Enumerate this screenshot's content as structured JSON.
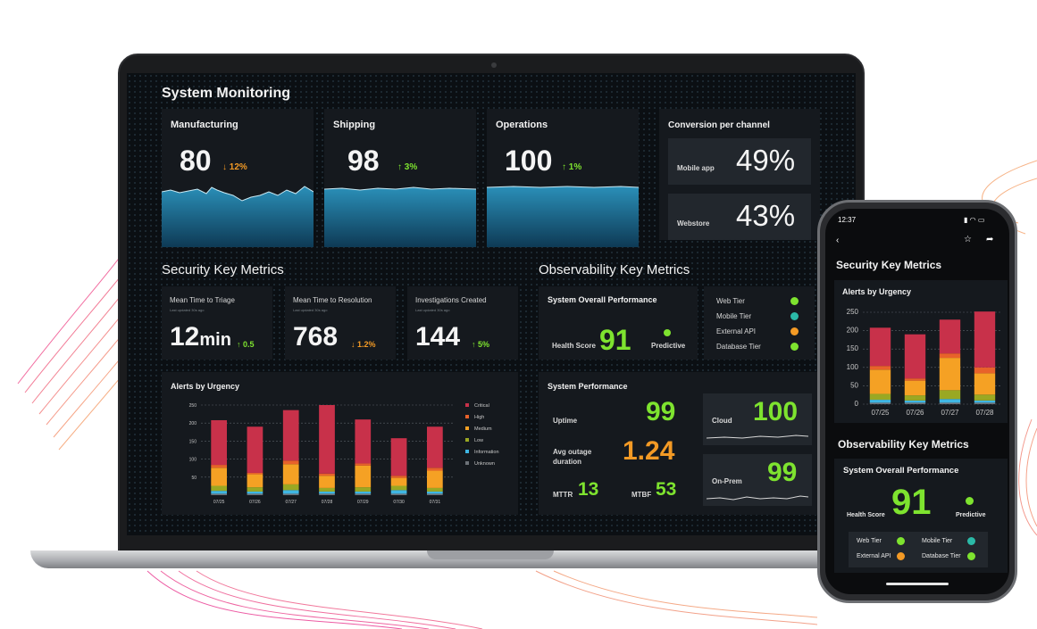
{
  "dashboard": {
    "title": "System Monitoring",
    "cards": [
      {
        "label": "Manufacturing",
        "value": "80",
        "delta": "↓ 12%",
        "trend": "down"
      },
      {
        "label": "Shipping",
        "value": "98",
        "delta": "↑ 3%",
        "trend": "up"
      },
      {
        "label": "Operations",
        "value": "100",
        "delta": "↑ 1%",
        "trend": "up"
      }
    ],
    "conversion": {
      "title": "Conversion per channel",
      "rows": [
        {
          "label": "Mobile app",
          "value": "49%"
        },
        {
          "label": "Webstore",
          "value": "43%"
        }
      ]
    }
  },
  "security": {
    "title": "Security Key Metrics",
    "metrics": [
      {
        "label": "Mean Time to Triage",
        "sub": "Last updated 30s ago",
        "value": "12",
        "unit": "min",
        "delta": "↑ 0.5",
        "trend": "up"
      },
      {
        "label": "Mean Time to Resolution",
        "sub": "Last updated 30s ago",
        "value": "768",
        "unit": "",
        "delta": "↓ 1.2%",
        "trend": "down"
      },
      {
        "label": "Investigations Created",
        "sub": "Last updated 30s ago",
        "value": "144",
        "unit": "",
        "delta": "↑ 5%",
        "trend": "up"
      }
    ]
  },
  "alerts": {
    "title": "Alerts by Urgency",
    "legend": [
      "Critical",
      "High",
      "Medium",
      "Low",
      "Information",
      "Unknown"
    ],
    "colors": [
      "#c8314a",
      "#e8622a",
      "#f5a124",
      "#9aa823",
      "#3fb6e3",
      "#6d7278"
    ]
  },
  "chart_data": [
    {
      "type": "bar",
      "stacked": true,
      "title": "Alerts by Urgency",
      "categories": [
        "07/25",
        "07/26",
        "07/27",
        "07/28",
        "07/29",
        "07/30",
        "07/31"
      ],
      "yticks": [
        50,
        100,
        150,
        200,
        250
      ],
      "ylim": [
        0,
        250
      ],
      "series": [
        {
          "name": "Unknown",
          "values": [
            4,
            4,
            4,
            4,
            4,
            4,
            4
          ]
        },
        {
          "name": "Information",
          "values": [
            8,
            6,
            10,
            6,
            6,
            10,
            6
          ]
        },
        {
          "name": "Low",
          "values": [
            14,
            12,
            16,
            10,
            12,
            12,
            10
          ]
        },
        {
          "name": "Medium",
          "values": [
            50,
            36,
            56,
            34,
            60,
            22,
            48
          ]
        },
        {
          "name": "High",
          "values": [
            8,
            4,
            10,
            6,
            6,
            6,
            8
          ]
        },
        {
          "name": "Critical",
          "values": [
            124,
            128,
            140,
            190,
            122,
            104,
            114
          ]
        }
      ]
    },
    {
      "type": "bar",
      "stacked": true,
      "title": "Alerts by Urgency",
      "categories": [
        "07/25",
        "07/26",
        "07/27",
        "07/28"
      ],
      "yticks": [
        0,
        50,
        100,
        150,
        200,
        250
      ],
      "ylim": [
        0,
        250
      ],
      "series": [
        {
          "name": "Unknown",
          "values": [
            4,
            4,
            4,
            4
          ]
        },
        {
          "name": "Information",
          "values": [
            8,
            6,
            10,
            6
          ]
        },
        {
          "name": "Low",
          "values": [
            16,
            14,
            24,
            16
          ]
        },
        {
          "name": "Medium",
          "values": [
            66,
            40,
            88,
            58
          ]
        },
        {
          "name": "High",
          "values": [
            10,
            6,
            12,
            16
          ]
        },
        {
          "name": "Critical",
          "values": [
            104,
            120,
            92,
            152
          ]
        }
      ]
    }
  ],
  "observability": {
    "title": "Observability Key Metrics",
    "overall": {
      "title": "System Overall Performance",
      "health_label": "Health Score",
      "health_value": "91",
      "predictive_label": "Predictive"
    },
    "tiers": [
      {
        "label": "Web Tier",
        "color": "#7ee32f"
      },
      {
        "label": "Mobile Tier",
        "color": "#2bb9a7"
      },
      {
        "label": "External API",
        "color": "#f39a25"
      },
      {
        "label": "Database Tier",
        "color": "#7ee32f"
      }
    ],
    "system": {
      "title": "System Performance",
      "uptime_label": "Uptime",
      "uptime_value": "99",
      "outage_label_1": "Avg outage",
      "outage_label_2": "duration",
      "outage_value": "1.24",
      "mttr_label": "MTTR",
      "mttr_value": "13",
      "mtbf_label": "MTBF",
      "mtbf_value": "53",
      "cloud_label": "Cloud",
      "cloud_value": "100",
      "onprem_label": "On-Prem",
      "onprem_value": "99"
    }
  },
  "phone": {
    "time": "12:37",
    "security_title": "Security Key Metrics",
    "alerts_title": "Alerts by Urgency",
    "observability_title": "Observability Key Metrics",
    "overall_title": "System Overall Performance",
    "health_label": "Health Score",
    "health_value": "91",
    "predictive_label": "Predictive",
    "tiers": [
      {
        "label": "Web Tier",
        "color": "#7ee32f"
      },
      {
        "label": "Mobile Tier",
        "color": "#2bb9a7"
      },
      {
        "label": "External API",
        "color": "#f39a25"
      },
      {
        "label": "Database Tier",
        "color": "#7ee32f"
      }
    ],
    "icons": [
      "back-icon",
      "star-icon",
      "share-icon",
      "signal-icon",
      "wifi-icon",
      "battery-icon"
    ]
  }
}
